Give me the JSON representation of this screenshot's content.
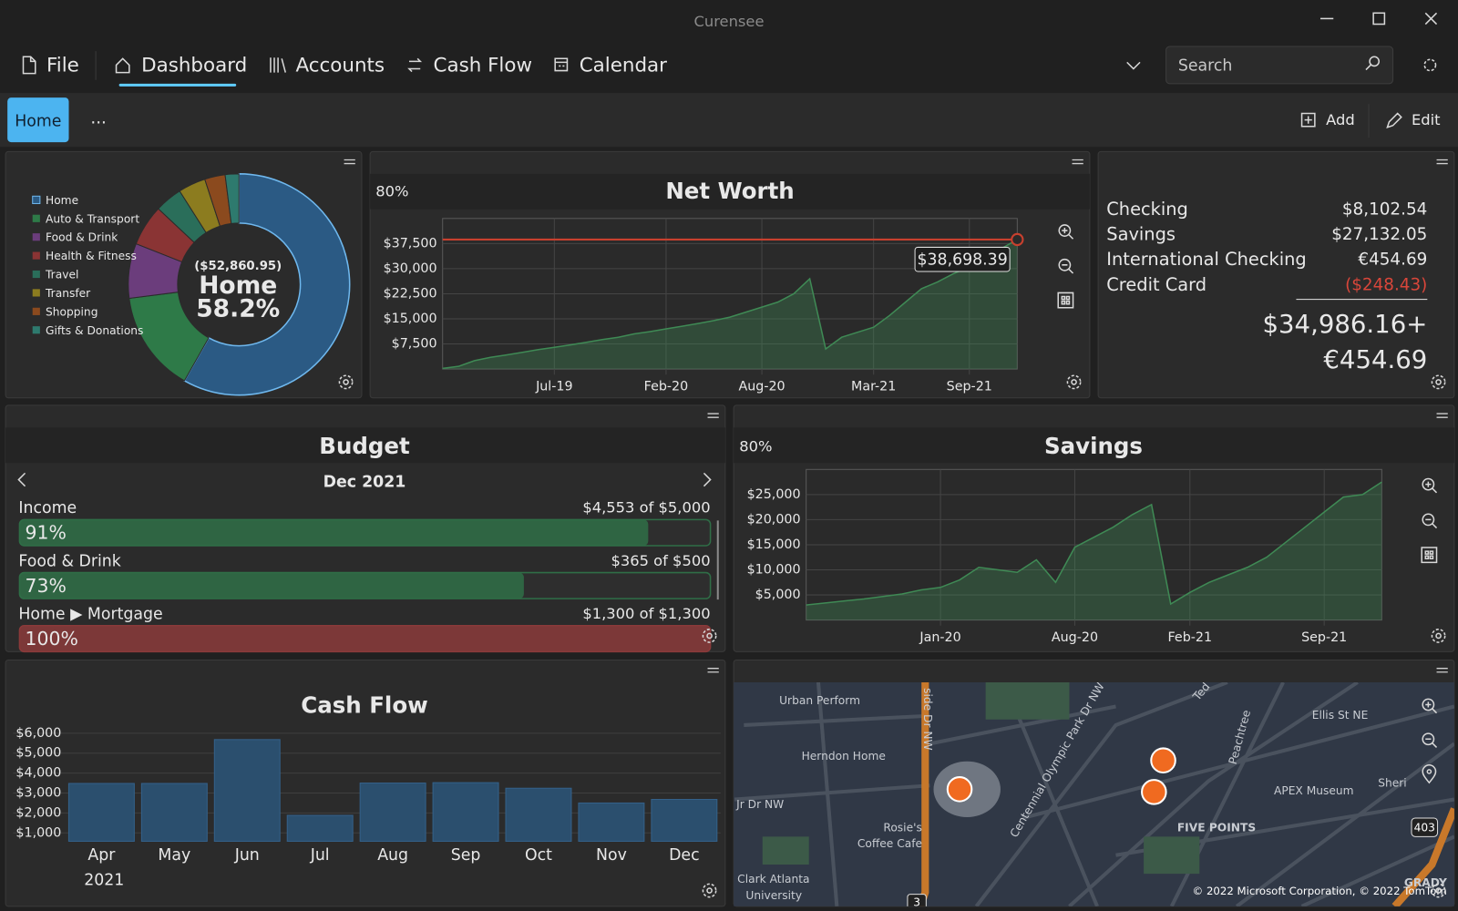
{
  "window": {
    "title": "Curensee"
  },
  "menu": {
    "items": [
      "File",
      "Dashboard",
      "Accounts",
      "Cash Flow",
      "Calendar"
    ],
    "search_placeholder": "Search"
  },
  "toolbar": {
    "tab": "Home",
    "more": "...",
    "actions": [
      "Add",
      "Edit"
    ]
  },
  "chart_data": [
    {
      "type": "pie",
      "legend": "left",
      "center": {
        "amount": "($52,860.95)",
        "label": "Home",
        "percent": "58.2%"
      },
      "categories": [
        "Home",
        "Auto & Transport",
        "Food & Drink",
        "Health & Fitness",
        "Travel",
        "Transfer",
        "Shopping",
        "Gifts & Donations"
      ],
      "values": [
        58.2,
        14.8,
        8,
        6,
        4,
        4,
        3,
        2
      ],
      "colors": [
        "#2b5a84",
        "#2e7a48",
        "#6b3d7c",
        "#8a3434",
        "#2a6e5a",
        "#8c7c1f",
        "#8b4a1e",
        "#2e7a6e"
      ]
    },
    {
      "type": "area",
      "label": "80%",
      "title": "Net Worth",
      "x": [
        "Dec-18",
        "Jan-19",
        "Feb-19",
        "Mar-19",
        "Apr-19",
        "May-19",
        "Jun-19",
        "Jul-19",
        "Aug-19",
        "Sep-19",
        "Oct-19",
        "Nov-19",
        "Dec-19",
        "Jan-20",
        "Feb-20",
        "Mar-20",
        "Apr-20",
        "May-20",
        "Jun-20",
        "Jul-20",
        "Aug-20",
        "Sep-20",
        "Oct-20",
        "Nov-20",
        "Dec-20",
        "Jan-21",
        "Feb-21",
        "Mar-21",
        "Apr-21",
        "May-21",
        "Jun-21",
        "Jul-21",
        "Aug-21",
        "Sep-21",
        "Oct-21",
        "Nov-21",
        "Dec-21"
      ],
      "values": [
        200,
        800,
        2500,
        3500,
        4200,
        5000,
        5800,
        6500,
        7200,
        8000,
        8800,
        9500,
        10500,
        11200,
        12000,
        12800,
        13600,
        14500,
        15500,
        17000,
        18500,
        20000,
        22500,
        27000,
        6000,
        9500,
        11000,
        12500,
        16000,
        20000,
        24000,
        26000,
        28500,
        30500,
        33500,
        36000,
        38698.39
      ],
      "color": "#3f8a55",
      "ylim": [
        0,
        45000
      ],
      "yticks": [
        {
          "value": 7500,
          "label": "$7,500"
        },
        {
          "value": 15000,
          "label": "$15,000"
        },
        {
          "value": 22500,
          "label": "$22,500"
        },
        {
          "value": 30000,
          "label": "$30,000"
        },
        {
          "value": 37500,
          "label": "$37,500"
        }
      ],
      "xticks": [
        "Jul-19",
        "Feb-20",
        "Aug-20",
        "Mar-21",
        "Sep-21"
      ],
      "marker": {
        "value": 38698.39,
        "label": "$38,698.39"
      },
      "grid": true
    },
    {
      "type": "area",
      "label": "80%",
      "title": "Savings",
      "x": [
        "Jun-19",
        "Jul-19",
        "Aug-19",
        "Sep-19",
        "Oct-19",
        "Nov-19",
        "Dec-19",
        "Jan-20",
        "Feb-20",
        "Mar-20",
        "Apr-20",
        "May-20",
        "Jun-20",
        "Jul-20",
        "Aug-20",
        "Sep-20",
        "Oct-20",
        "Nov-20",
        "Dec-20",
        "Jan-21",
        "Feb-21",
        "Mar-21",
        "Apr-21",
        "May-21",
        "Jun-21",
        "Jul-21",
        "Aug-21",
        "Sep-21",
        "Oct-21",
        "Nov-21",
        "Dec-21"
      ],
      "values": [
        3000,
        3400,
        3800,
        4200,
        4700,
        5200,
        6000,
        6500,
        8000,
        10500,
        10000,
        9500,
        12000,
        7500,
        14500,
        16500,
        18500,
        21000,
        23000,
        3200,
        5500,
        7500,
        9000,
        10500,
        12500,
        15500,
        18500,
        21500,
        24500,
        25000,
        27500
      ],
      "color": "#3f8a55",
      "ylim": [
        0,
        30000
      ],
      "yticks": [
        {
          "value": 5000,
          "label": "$5,000"
        },
        {
          "value": 10000,
          "label": "$10,000"
        },
        {
          "value": 15000,
          "label": "$15,000"
        },
        {
          "value": 20000,
          "label": "$20,000"
        },
        {
          "value": 25000,
          "label": "$25,000"
        }
      ],
      "xticks": [
        "Jan-20",
        "Aug-20",
        "Feb-21",
        "Sep-21"
      ],
      "grid": true
    },
    {
      "type": "bar",
      "title": "Cash Flow",
      "categories": [
        "Apr",
        "May",
        "Jun",
        "Jul",
        "Aug",
        "Sep",
        "Oct",
        "Nov",
        "Dec"
      ],
      "x_caption": "2021",
      "values": [
        3480,
        3480,
        5680,
        1880,
        3500,
        3520,
        3240,
        2500,
        2680
      ],
      "color": "#2b4f6e",
      "ylim": [
        580,
        6500
      ],
      "yticks": [
        {
          "value": 1000,
          "label": "$1,000"
        },
        {
          "value": 2000,
          "label": "$2,000"
        },
        {
          "value": 3000,
          "label": "$3,000"
        },
        {
          "value": 4000,
          "label": "$4,000"
        },
        {
          "value": 5000,
          "label": "$5,000"
        },
        {
          "value": 6000,
          "label": "$6,000"
        }
      ],
      "grid": true
    }
  ],
  "accounts": {
    "rows": [
      {
        "name": "Checking",
        "balance": "$8,102.54"
      },
      {
        "name": "Savings",
        "balance": "$27,132.05"
      },
      {
        "name": "International Checking",
        "balance": "€454.69"
      },
      {
        "name": "Credit Card",
        "balance": "($248.43)"
      }
    ],
    "totals": [
      "$34,986.16+",
      "€454.69"
    ]
  },
  "budget": {
    "title": "Budget",
    "period": "Dec 2021",
    "items": [
      {
        "name": "Income",
        "amount": "$4,553 of $5,000",
        "percent": 91,
        "percent_label": "91%",
        "color": "#2f6e47"
      },
      {
        "name": "Food & Drink",
        "amount": "$365 of $500",
        "percent": 73,
        "percent_label": "73%",
        "color": "#2f6e47"
      },
      {
        "name": "Home ▶ Mortgage",
        "amount": "$1,300 of $1,300",
        "percent": 100,
        "percent_label": "100%",
        "color": "#8a3a3a"
      }
    ]
  },
  "map": {
    "labels": [
      "Urban Perform",
      "Herndon Home",
      "Rosie's",
      "Coffee Cafe",
      "Clark Atlanta",
      "University",
      "APEX Museum",
      "FIVE POINTS",
      "Ellis St NE",
      "Centennial Olympic Park Dr NW",
      "side Dr NW",
      "Jr Dr NW",
      "Peachtree",
      "Ted",
      "Sheri",
      "403",
      "3",
      "GRADY"
    ],
    "attribution": "© 2022 Microsoft Corporation, © 2022 TomTom"
  }
}
